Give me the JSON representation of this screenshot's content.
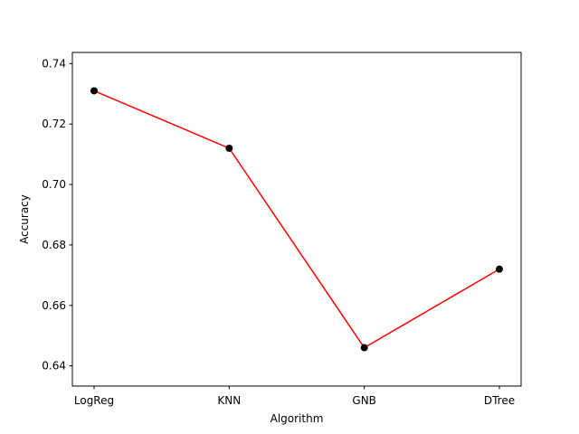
{
  "chart_data": {
    "type": "line",
    "title": "",
    "xlabel": "Algorithm",
    "ylabel": "Accuracy",
    "categories": [
      "LogReg",
      "KNN",
      "GNB",
      "DTree"
    ],
    "series": [
      {
        "values": [
          0.731,
          0.712,
          0.646,
          0.672
        ],
        "line_color": "#ff0000",
        "marker_color": "#000000"
      }
    ],
    "ylim": [
      0.6333,
      0.7437
    ],
    "yticks": [
      0.64,
      0.66,
      0.68,
      0.7,
      0.72,
      0.74
    ],
    "ytick_labels": [
      "0.64",
      "0.66",
      "0.68",
      "0.70",
      "0.72",
      "0.74"
    ],
    "grid": false,
    "legend": "none"
  }
}
